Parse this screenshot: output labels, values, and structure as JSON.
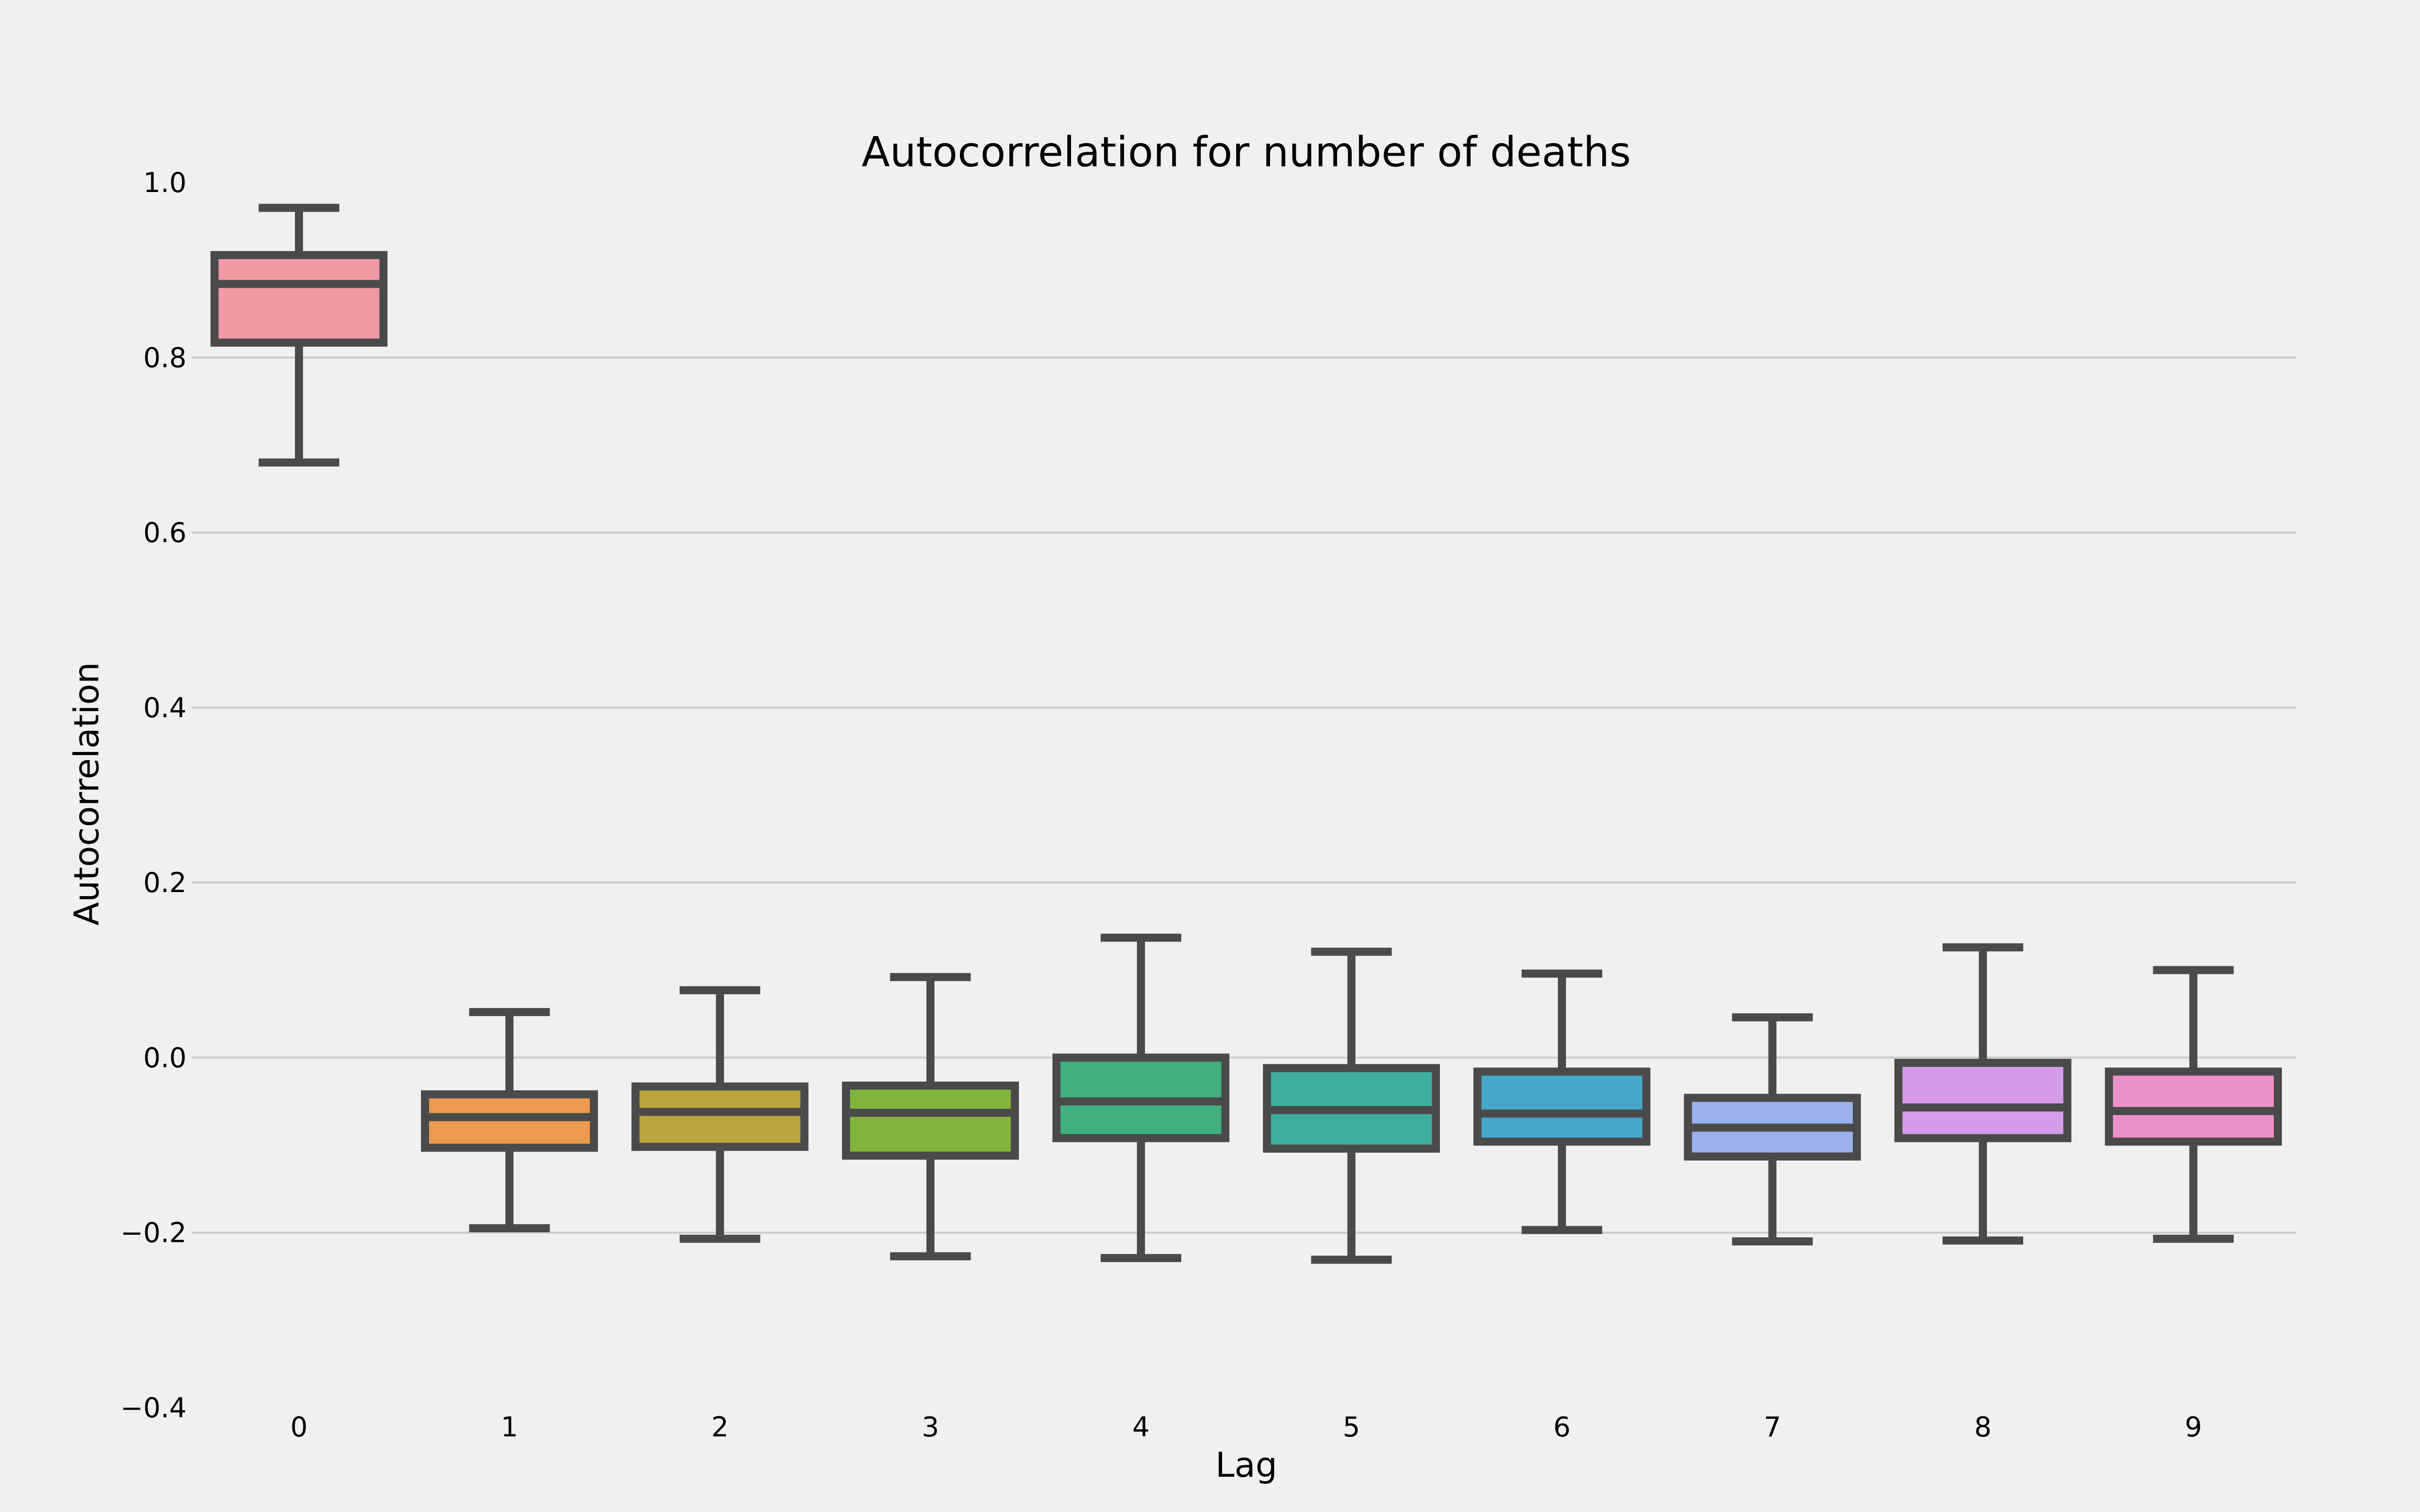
{
  "chart_data": {
    "type": "box",
    "title": "Autocorrelation for number of deaths",
    "xlabel": "Lag",
    "ylabel": "Autocorrelation",
    "ylim": [
      -0.4,
      1.0
    ],
    "yticks": [
      "−0.4",
      "−0.2",
      "0.0",
      "0.2",
      "0.4",
      "0.6",
      "0.8",
      "1.0"
    ],
    "yticks_values": [
      -0.4,
      -0.2,
      0.0,
      0.2,
      0.4,
      0.6,
      0.8,
      1.0
    ],
    "grid": true,
    "categories": [
      "0",
      "1",
      "2",
      "3",
      "4",
      "5",
      "6",
      "7",
      "8",
      "9"
    ],
    "boxes": [
      {
        "lag": "0",
        "whisker_low": 0.68,
        "q1": 0.817,
        "median": 0.884,
        "q3": 0.917,
        "whisker_high": 0.971,
        "color": "#f19aa6"
      },
      {
        "lag": "1",
        "whisker_low": -0.195,
        "q1": -0.103,
        "median": -0.068,
        "q3": -0.042,
        "whisker_high": 0.052,
        "color": "#eb9a4f"
      },
      {
        "lag": "2",
        "whisker_low": -0.207,
        "q1": -0.102,
        "median": -0.062,
        "q3": -0.033,
        "whisker_high": 0.077,
        "color": "#b9a43e"
      },
      {
        "lag": "3",
        "whisker_low": -0.227,
        "q1": -0.112,
        "median": -0.063,
        "q3": -0.032,
        "whisker_high": 0.092,
        "color": "#82b43c"
      },
      {
        "lag": "4",
        "whisker_low": -0.229,
        "q1": -0.092,
        "median": -0.05,
        "q3": 0.0,
        "whisker_high": 0.137,
        "color": "#41b07c"
      },
      {
        "lag": "5",
        "whisker_low": -0.231,
        "q1": -0.104,
        "median": -0.06,
        "q3": -0.012,
        "whisker_high": 0.121,
        "color": "#40ae9f"
      },
      {
        "lag": "6",
        "whisker_low": -0.197,
        "q1": -0.096,
        "median": -0.064,
        "q3": -0.016,
        "whisker_high": 0.096,
        "color": "#46a8c8"
      },
      {
        "lag": "7",
        "whisker_low": -0.21,
        "q1": -0.113,
        "median": -0.08,
        "q3": -0.046,
        "whisker_high": 0.046,
        "color": "#9cb0eb"
      },
      {
        "lag": "8",
        "whisker_low": -0.209,
        "q1": -0.092,
        "median": -0.057,
        "q3": -0.006,
        "whisker_high": 0.126,
        "color": "#d59bea"
      },
      {
        "lag": "9",
        "whisker_low": -0.207,
        "q1": -0.096,
        "median": -0.061,
        "q3": -0.016,
        "whisker_high": 0.1,
        "color": "#ec91c8"
      }
    ]
  }
}
